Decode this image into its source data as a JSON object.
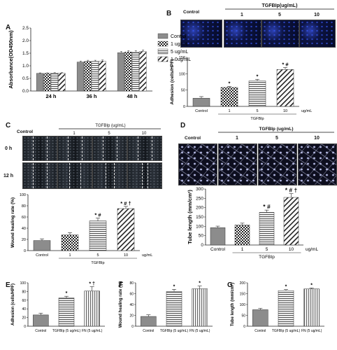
{
  "colors": {
    "bar_dark": "#8c8c8c",
    "bar_mid": "#a9a9a9",
    "bar_light": "#c9c9c9",
    "axis": "#222222"
  },
  "panels": {
    "A": {
      "letter": "A"
    },
    "B": {
      "letter": "B",
      "header_control": "Control",
      "header_treatment": "TGFBIp(ug/mL)",
      "doses": [
        "1",
        "5",
        "10"
      ]
    },
    "C": {
      "letter": "C",
      "header_control": "Control",
      "header_treatment": "TGFBIp (ug/mL)",
      "doses": [
        "1",
        "5",
        "10"
      ],
      "row_labels": [
        "0 h",
        "12 h"
      ]
    },
    "D": {
      "letter": "D",
      "header_control": "Control",
      "header_treatment": "TGFBIp (ug/mL)",
      "doses": [
        "1",
        "5",
        "10"
      ]
    },
    "E": {
      "letter": "E"
    },
    "F": {
      "letter": "F"
    },
    "G": {
      "letter": "G"
    }
  },
  "chart_data": [
    {
      "panel": "A",
      "type": "bar",
      "ylabel": "Absorbance(OD450nm)",
      "ylim": [
        0,
        2.5
      ],
      "yticks": [
        "0.0",
        "0.5",
        "1.0",
        "1.5",
        "2.0",
        "2.5"
      ],
      "categories": [
        "24 h",
        "36 h",
        "48 h"
      ],
      "series": [
        {
          "name": "Control",
          "pattern": "solid",
          "values": [
            0.7,
            1.15,
            1.52
          ]
        },
        {
          "name": "1 ug/mL",
          "pattern": "checker",
          "values": [
            0.7,
            1.18,
            1.55
          ]
        },
        {
          "name": "5 ug/mL",
          "pattern": "hstripe",
          "values": [
            0.71,
            1.18,
            1.55
          ]
        },
        {
          "name": "1 0ug/mL",
          "pattern": "diag",
          "values": [
            0.71,
            1.19,
            1.57
          ]
        }
      ],
      "errors": [
        [
          0.02,
          0.04,
          0.05
        ],
        [
          0.02,
          0.04,
          0.05
        ],
        [
          0.02,
          0.04,
          0.05
        ],
        [
          0.02,
          0.04,
          0.06
        ]
      ],
      "legend": "right"
    },
    {
      "panel": "B",
      "type": "bar",
      "ylabel": "Adhesion (cells/HPF)",
      "ylim": [
        0,
        150
      ],
      "yticks": [
        "0",
        "50",
        "100",
        "150"
      ],
      "categories": [
        "Control",
        "1",
        "5",
        "10"
      ],
      "unit_label": "ug/mL",
      "group_label": "TGFBIp",
      "values": [
        25,
        58,
        78,
        113
      ],
      "errors": [
        5,
        3,
        5,
        6
      ],
      "patterns": [
        "solid",
        "checker",
        "hstripe",
        "diag"
      ],
      "annotations": [
        "",
        "*",
        "*",
        "*,#"
      ]
    },
    {
      "panel": "C",
      "type": "bar",
      "ylabel": "Wound healing rate (%)",
      "ylim": [
        0,
        100
      ],
      "yticks": [
        "0",
        "20",
        "40",
        "60",
        "80",
        "100"
      ],
      "categories": [
        "Control",
        "1",
        "5",
        "10"
      ],
      "unit_label": "ug/mL",
      "group_label": "TGFBIp",
      "values": [
        18,
        28,
        53,
        75
      ],
      "errors": [
        3,
        4,
        5,
        4
      ],
      "patterns": [
        "solid",
        "checker",
        "hstripe",
        "diag"
      ],
      "annotations": [
        "",
        "",
        "*,#",
        "*,#,†"
      ]
    },
    {
      "panel": "D",
      "type": "bar",
      "ylabel": "Tube length (mm/cm²)",
      "ylim": [
        0,
        300
      ],
      "yticks": [
        "0",
        "50",
        "100",
        "150",
        "200",
        "250",
        "300"
      ],
      "categories": [
        "Control",
        "1",
        "5",
        "10"
      ],
      "unit_label": "ug/mL",
      "group_label": "TGFBIp",
      "values": [
        93,
        107,
        175,
        255
      ],
      "errors": [
        8,
        10,
        12,
        20
      ],
      "patterns": [
        "solid",
        "checker",
        "hstripe",
        "diag"
      ],
      "annotations": [
        "",
        "",
        "*,#",
        "*,#,†"
      ]
    },
    {
      "panel": "E",
      "type": "bar",
      "ylabel": "Adhesion (cells/HPF)",
      "ylim": [
        0,
        100
      ],
      "yticks": [
        "0",
        "20",
        "40",
        "60",
        "80",
        "100"
      ],
      "categories": [
        "Control",
        "TGFBIp (5 ug/mL)",
        "FN (5 ug/mL)"
      ],
      "values": [
        26,
        65,
        81
      ],
      "errors": [
        4,
        4,
        10
      ],
      "patterns": [
        "solid",
        "hstripe",
        "vstripe"
      ],
      "annotations": [
        "",
        "*",
        "*,†"
      ]
    },
    {
      "panel": "F",
      "type": "bar",
      "ylabel": "Wound healing rate (%)",
      "ylim": [
        0,
        80
      ],
      "yticks": [
        "0",
        "20",
        "40",
        "60",
        "80"
      ],
      "categories": [
        "Control",
        "TGFBIp (5 ug/mL)",
        "FN (5 ug/mL)"
      ],
      "values": [
        18,
        64,
        69
      ],
      "errors": [
        3,
        4,
        5
      ],
      "patterns": [
        "solid",
        "hstripe",
        "vstripe"
      ],
      "annotations": [
        "",
        "*",
        "*"
      ]
    },
    {
      "panel": "G",
      "type": "bar",
      "ylabel": "Tube length (mm/cm²)",
      "ylim": [
        0,
        200
      ],
      "yticks": [
        "0",
        "50",
        "100",
        "150",
        "200"
      ],
      "categories": [
        "Control",
        "TGFBIp (5 ug/mL)",
        "FN (5 ug/mL)"
      ],
      "values": [
        76,
        164,
        172
      ],
      "errors": [
        6,
        5,
        4
      ],
      "patterns": [
        "solid",
        "hstripe",
        "vstripe"
      ],
      "annotations": [
        "",
        "*",
        "*"
      ]
    }
  ]
}
